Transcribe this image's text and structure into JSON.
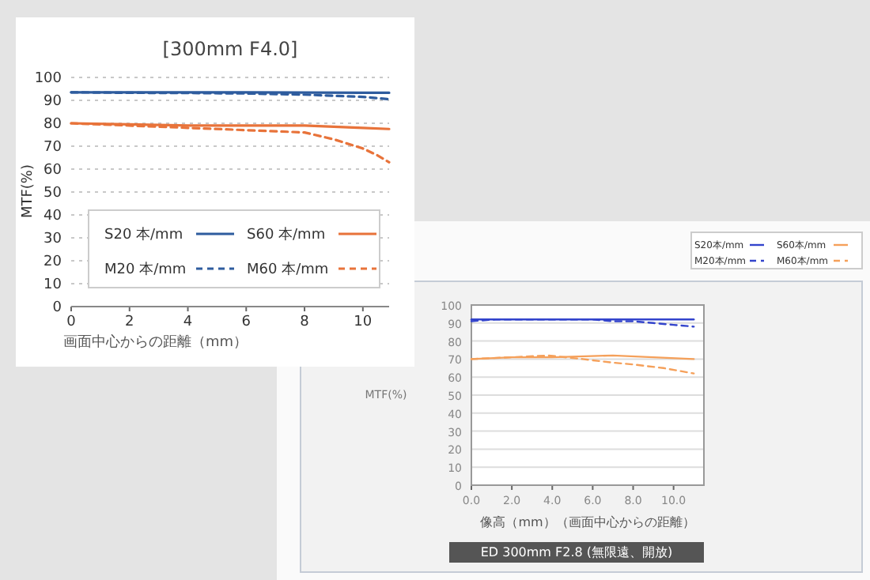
{
  "chart_data": [
    {
      "type": "line",
      "title": "[300mm F4.0]",
      "xlabel": "画面中心からの距離（mm）",
      "ylabel": "MTF(%)",
      "xlim": [
        0,
        10.9
      ],
      "xticks": [
        0,
        2,
        4,
        6,
        8,
        10
      ],
      "ylim": [
        0,
        100
      ],
      "yticks": [
        0,
        10,
        20,
        30,
        40,
        50,
        60,
        70,
        80,
        90,
        100
      ],
      "grid": "y",
      "legend": "bottom",
      "series": [
        {
          "name": "S20 本/mm",
          "color": "#2e5c9e",
          "line_style": "solid",
          "x": [
            0,
            2,
            4,
            6,
            8,
            10,
            10.9
          ],
          "values": [
            93.5,
            93.5,
            93.5,
            93.5,
            93.4,
            93.3,
            93.3
          ]
        },
        {
          "name": "S60 本/mm",
          "color": "#e8733a",
          "line_style": "solid",
          "x": [
            0,
            2,
            4,
            6,
            8,
            9,
            10,
            10.9
          ],
          "values": [
            80,
            79.5,
            79,
            79,
            79,
            78.5,
            78,
            77.5
          ]
        },
        {
          "name": "M20 本/mm",
          "color": "#2e5c9e",
          "line_style": "dashed",
          "x": [
            0,
            2,
            4,
            6,
            8,
            9,
            10,
            10.9
          ],
          "values": [
            93.5,
            93.3,
            93.2,
            93,
            92.5,
            92,
            91.5,
            90.5
          ]
        },
        {
          "name": "M60 本/mm",
          "color": "#e8733a",
          "line_style": "dashed",
          "x": [
            0,
            2,
            4,
            6,
            7,
            8,
            9,
            10,
            10.5,
            10.9
          ],
          "values": [
            80,
            79,
            78,
            77,
            76.5,
            76,
            73,
            69,
            66,
            63
          ]
        }
      ]
    },
    {
      "type": "line",
      "title": "ED 300mm F2.8 (無限遠、開放)",
      "xlabel": "像高（mm）（画面中心からの距離）",
      "ylabel": "MTF(%)",
      "xlim": [
        0,
        11.5
      ],
      "xticks": [
        {
          "value": 0,
          "label": "0.0"
        },
        {
          "value": 2,
          "label": "2.0"
        },
        {
          "value": 4,
          "label": "4.0"
        },
        {
          "value": 6,
          "label": "6.0"
        },
        {
          "value": 8,
          "label": "8.0"
        },
        {
          "value": 10,
          "label": "10.0"
        }
      ],
      "ylim": [
        0,
        100
      ],
      "yticks": [
        0,
        10,
        20,
        30,
        40,
        50,
        60,
        70,
        80,
        90,
        100
      ],
      "grid": "y",
      "legend": "top right",
      "series": [
        {
          "name": "S20本/mm",
          "color": "#3344cc",
          "line_style": "solid",
          "x": [
            0,
            4,
            8,
            11
          ],
          "values": [
            92,
            92,
            92,
            92
          ]
        },
        {
          "name": "S60本/mm",
          "color": "#f5a05a",
          "line_style": "solid",
          "x": [
            0,
            2,
            4,
            7,
            9,
            11
          ],
          "values": [
            70,
            71,
            71,
            72,
            71,
            70
          ]
        },
        {
          "name": "M20本/mm",
          "color": "#3344cc",
          "line_style": "dashed",
          "x": [
            0,
            1.2,
            6,
            7,
            8,
            9,
            10,
            11
          ],
          "values": [
            91,
            92,
            92,
            91,
            91,
            90,
            89,
            88
          ]
        },
        {
          "name": "M60本/mm",
          "color": "#f5a05a",
          "line_style": "dashed",
          "x": [
            0,
            2,
            3.8,
            5.5,
            7,
            8,
            9.5,
            11
          ],
          "values": [
            70,
            71,
            72,
            70,
            68,
            67,
            65,
            62
          ]
        }
      ]
    }
  ]
}
